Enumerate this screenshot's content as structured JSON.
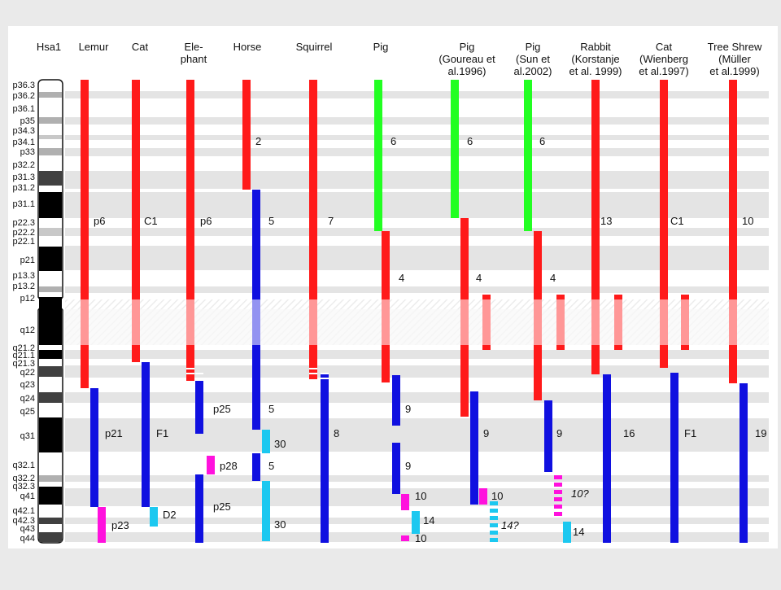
{
  "colors": {
    "red": "#ff1a1a",
    "green": "#22ff22",
    "blue": "#1010e0",
    "cyan": "#1cc8f0",
    "magenta": "#ff11dd",
    "band_stripe": "#e4e4e4",
    "centromere": "#f4c8c8",
    "page": "#ffffff",
    "frame": "#eaeaea"
  },
  "headers": [
    {
      "id": "hsa1",
      "lines": [
        "Hsa1"
      ]
    },
    {
      "id": "lemur",
      "lines": [
        "Lemur"
      ]
    },
    {
      "id": "cat",
      "lines": [
        "Cat"
      ]
    },
    {
      "id": "elephant",
      "lines": [
        "Ele-",
        "phant"
      ]
    },
    {
      "id": "horse",
      "lines": [
        "Horse"
      ]
    },
    {
      "id": "squirrel",
      "lines": [
        "Squirrel"
      ]
    },
    {
      "id": "pig",
      "lines": [
        "Pig"
      ]
    },
    {
      "id": "pig-goureau",
      "lines": [
        "Pig",
        "(Goureau et",
        "al.1996)"
      ]
    },
    {
      "id": "pig-sun",
      "lines": [
        "Pig",
        "(Sun et",
        "al.2002)"
      ]
    },
    {
      "id": "rabbit-korstanje",
      "lines": [
        "Rabbit",
        "(Korstanje",
        "et al. 1999)"
      ]
    },
    {
      "id": "cat-wienberg",
      "lines": [
        "Cat",
        "(Wienberg",
        "et al.1997)"
      ]
    },
    {
      "id": "tree-shrew",
      "lines": [
        "Tree Shrew",
        "(Müller",
        "et al.1999)"
      ]
    }
  ],
  "bands": [
    "p36.3",
    "p36.2",
    "p36.1",
    "p35",
    "p34.3",
    "p34.1",
    "p33",
    "p32.2",
    "p31.3",
    "p31.2",
    "p31.1",
    "p22.3",
    "p22.2",
    "p22.1",
    "p21",
    "p13.3",
    "p13.2",
    "p12",
    "q12",
    "q21.2",
    "q21.1",
    "q21.3",
    "q22",
    "q23",
    "q24",
    "q25",
    "q31",
    "q32.1",
    "q32.2",
    "q32.3",
    "q41",
    "q42.1",
    "q42.3",
    "q43",
    "q44"
  ],
  "labels": [
    {
      "text": "p6",
      "col": "lemur"
    },
    {
      "text": "C1",
      "col": "cat"
    },
    {
      "text": "p6",
      "col": "elephant"
    },
    {
      "text": "2",
      "col": "horse"
    },
    {
      "text": "5",
      "col": "horse"
    },
    {
      "text": "7",
      "col": "squirrel"
    },
    {
      "text": "6",
      "col": "pig"
    },
    {
      "text": "4",
      "col": "pig"
    },
    {
      "text": "6",
      "col": "pig-goureau"
    },
    {
      "text": "4",
      "col": "pig-goureau"
    },
    {
      "text": "6",
      "col": "pig-sun"
    },
    {
      "text": "4",
      "col": "pig-sun"
    },
    {
      "text": "13",
      "col": "rabbit-korstanje"
    },
    {
      "text": "C1",
      "col": "cat-wienberg"
    },
    {
      "text": "10",
      "col": "tree-shrew"
    },
    {
      "text": "p21",
      "col": "lemur"
    },
    {
      "text": "p23",
      "col": "lemur"
    },
    {
      "text": "F1",
      "col": "cat"
    },
    {
      "text": "D2",
      "col": "cat"
    },
    {
      "text": "p25",
      "col": "elephant"
    },
    {
      "text": "p28",
      "col": "elephant"
    },
    {
      "text": "p25",
      "col": "elephant"
    },
    {
      "text": "5",
      "col": "horse"
    },
    {
      "text": "30",
      "col": "horse"
    },
    {
      "text": "5",
      "col": "horse"
    },
    {
      "text": "30",
      "col": "horse"
    },
    {
      "text": "8",
      "col": "squirrel"
    },
    {
      "text": "9",
      "col": "pig"
    },
    {
      "text": "9",
      "col": "pig"
    },
    {
      "text": "10",
      "col": "pig"
    },
    {
      "text": "14",
      "col": "pig"
    },
    {
      "text": "10",
      "col": "pig"
    },
    {
      "text": "9",
      "col": "pig-goureau"
    },
    {
      "text": "10",
      "col": "pig-goureau"
    },
    {
      "text": "14?",
      "col": "pig-goureau"
    },
    {
      "text": "9",
      "col": "pig-sun"
    },
    {
      "text": "10?",
      "col": "pig-sun"
    },
    {
      "text": "14",
      "col": "pig-sun"
    },
    {
      "text": "16",
      "col": "rabbit-korstanje"
    },
    {
      "text": "F1",
      "col": "cat-wienberg"
    },
    {
      "text": "19",
      "col": "tree-shrew"
    }
  ]
}
